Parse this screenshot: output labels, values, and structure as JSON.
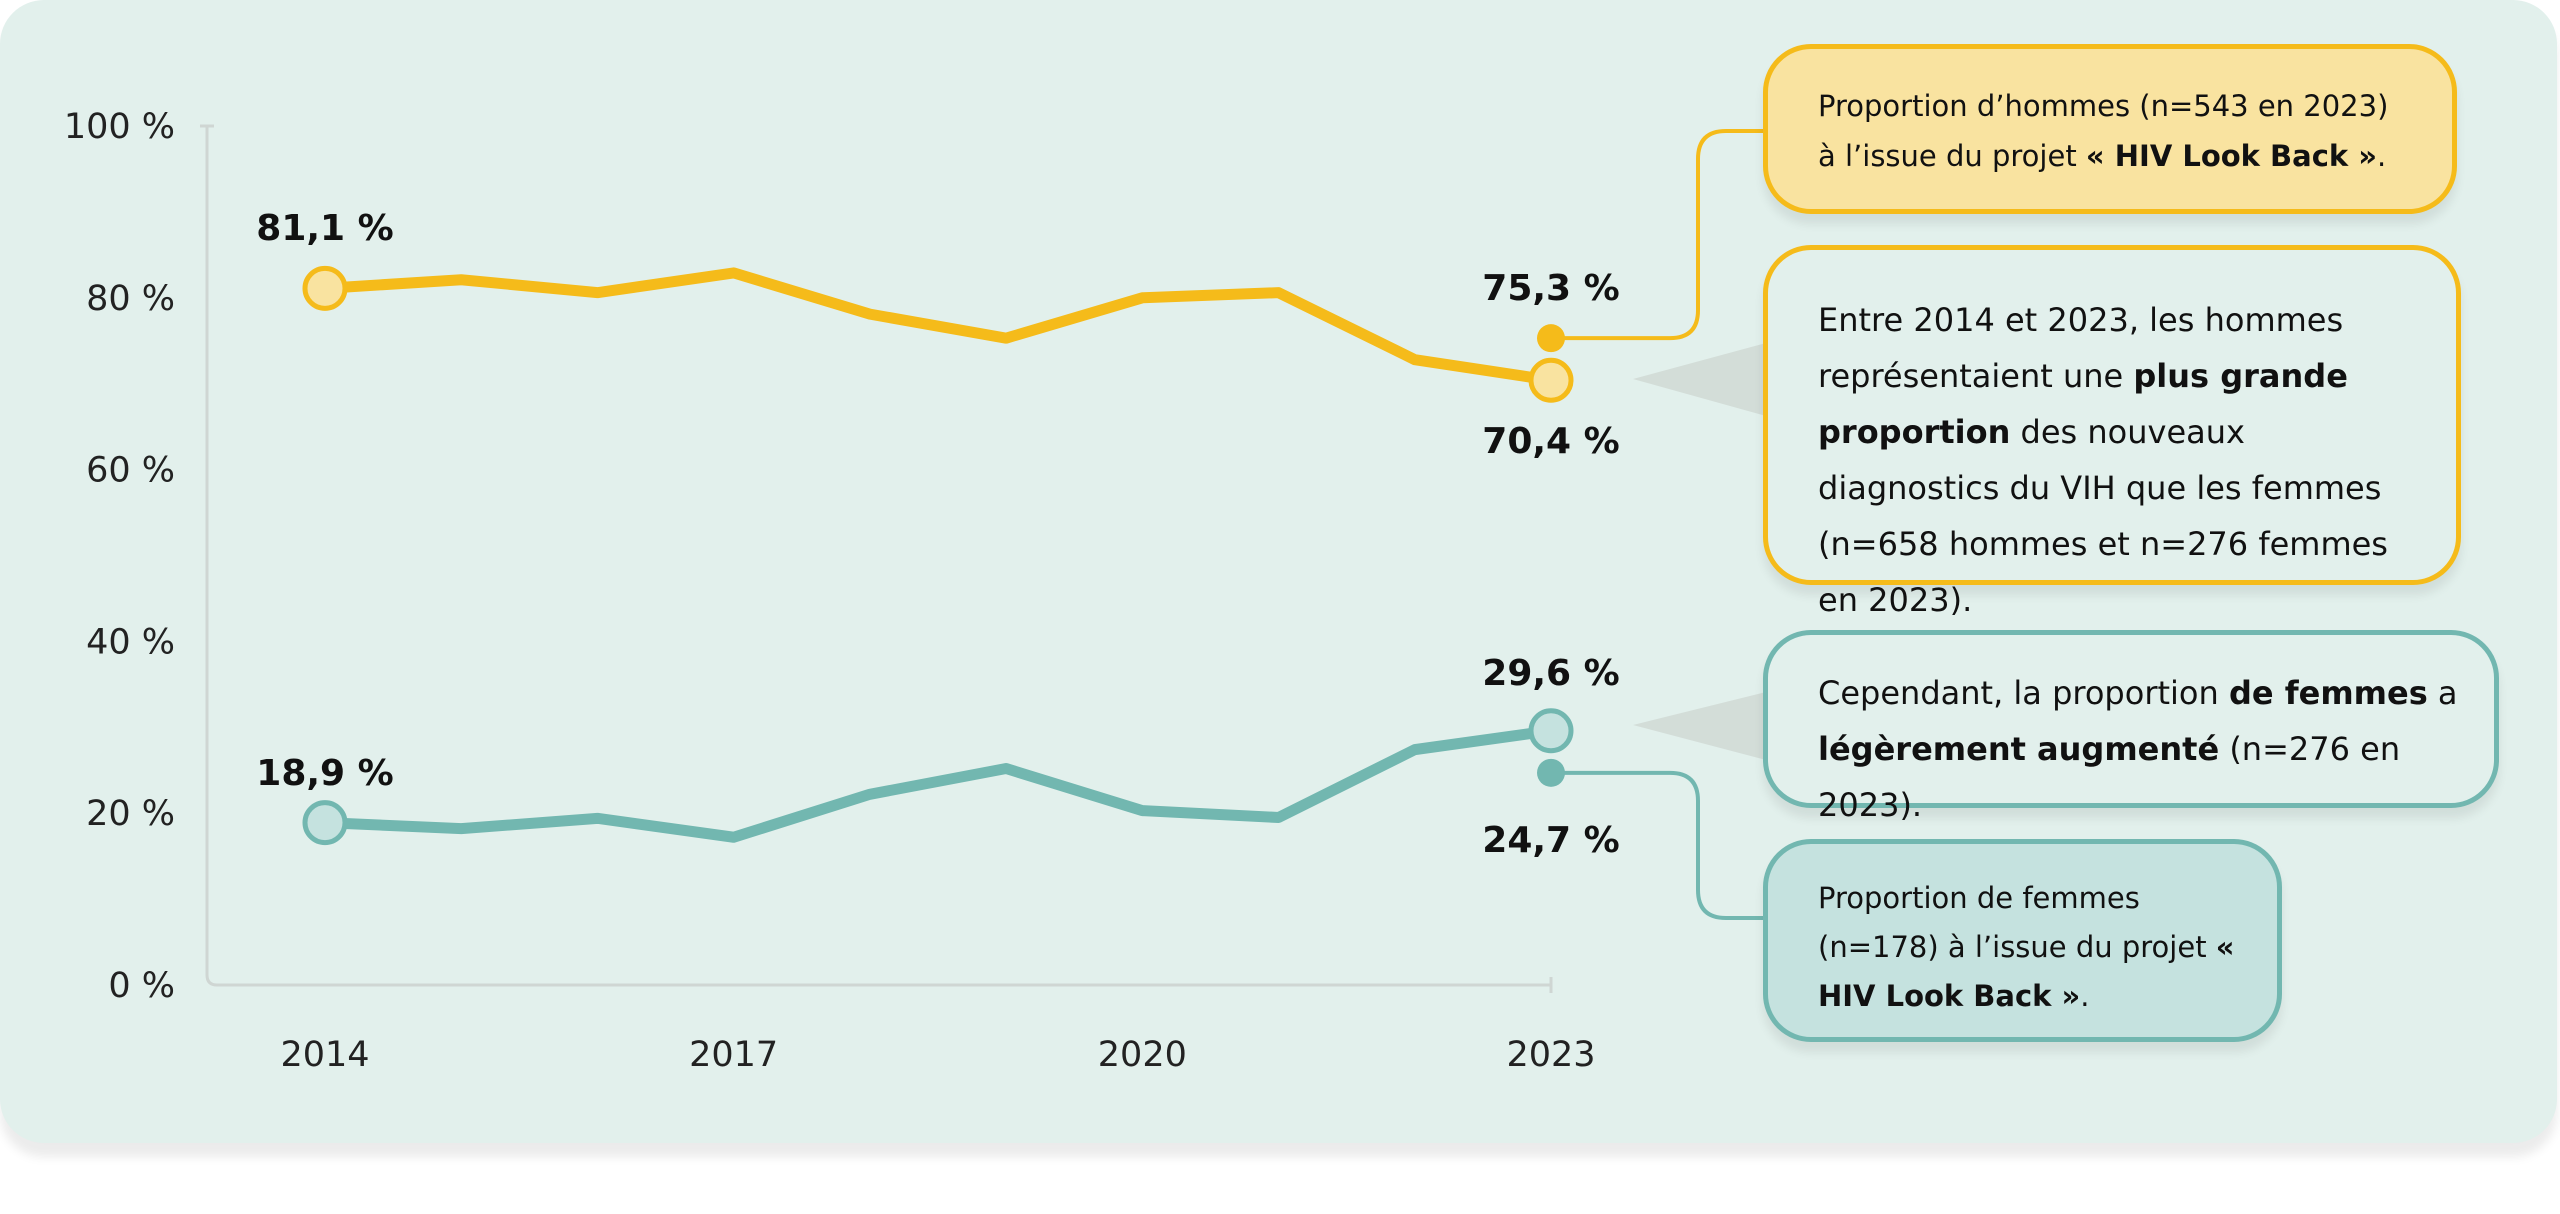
{
  "chart_data": {
    "type": "line",
    "x": [
      2014,
      2015,
      2016,
      2017,
      2018,
      2019,
      2020,
      2021,
      2022,
      2023
    ],
    "x_ticks": [
      "2014",
      "2017",
      "2020",
      "2023"
    ],
    "y_ticks": [
      "0 %",
      "20 %",
      "40 %",
      "60 %",
      "80 %",
      "100 %"
    ],
    "ylim": [
      0,
      100
    ],
    "grid": false,
    "series": [
      {
        "key": "hommes",
        "color": "#f5bb1a",
        "fill": "#f9e3a0",
        "values": [
          81.1,
          82.1,
          80.6,
          82.9,
          78.1,
          75.3,
          80.0,
          80.6,
          72.8,
          70.4
        ]
      },
      {
        "key": "femmes",
        "color": "#72b7b0",
        "fill": "#c5e2df",
        "values": [
          18.9,
          18.2,
          19.4,
          17.2,
          22.2,
          25.2,
          20.3,
          19.5,
          27.4,
          29.6
        ]
      }
    ],
    "data_labels": {
      "hommes_start": "81,1 %",
      "hommes_end": "70,4 %",
      "femmes_start": "18,9 %",
      "femmes_end": "29,6 %"
    },
    "lookback_points": [
      {
        "series": "hommes",
        "x": 2023,
        "y": 75.3,
        "label": "75,3 %"
      },
      {
        "series": "femmes",
        "x": 2023,
        "y": 24.7,
        "label": "24,7 %"
      }
    ]
  },
  "annotations": {
    "box1": {
      "pre": "Proportion d’hommes (n=543 en 2023) à l’issue du projet ",
      "bold": "« HIV Look Back »",
      "post": "."
    },
    "box2": {
      "pre": "Entre 2014 et 2023, les hommes représentaient une ",
      "bold": "plus grande proportion",
      "post": " des nouveaux diagnostics du VIH que les femmes (n=658 hommes et n=276 femmes en 2023)."
    },
    "box3": {
      "pre": "Cependant, la proportion ",
      "bold": "de femmes",
      "mid": " a ",
      "bold2": "légèrement augmenté",
      "post": " (n=276 en 2023)."
    },
    "box4": {
      "pre": "Proportion de femmes (n=178) à l’issue du projet ",
      "bold": "« HIV Look Back »",
      "post": "."
    }
  },
  "colors": {
    "background": "#e2f0ec",
    "men": "#f5bb1a",
    "women": "#72b7b0",
    "pointer": "#d3ddd8",
    "axis": "#cfd6d3"
  }
}
